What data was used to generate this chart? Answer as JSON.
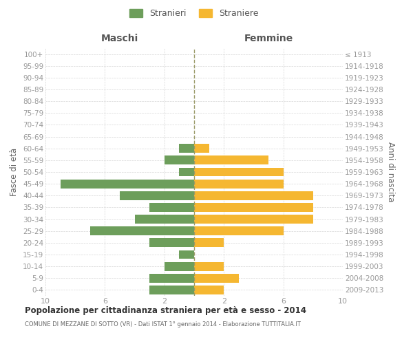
{
  "age_groups": [
    "0-4",
    "5-9",
    "10-14",
    "15-19",
    "20-24",
    "25-29",
    "30-34",
    "35-39",
    "40-44",
    "45-49",
    "50-54",
    "55-59",
    "60-64",
    "65-69",
    "70-74",
    "75-79",
    "80-84",
    "85-89",
    "90-94",
    "95-99",
    "100+"
  ],
  "birth_years": [
    "2009-2013",
    "2004-2008",
    "1999-2003",
    "1994-1998",
    "1989-1993",
    "1984-1988",
    "1979-1983",
    "1974-1978",
    "1969-1973",
    "1964-1968",
    "1959-1963",
    "1954-1958",
    "1949-1953",
    "1944-1948",
    "1939-1943",
    "1934-1938",
    "1929-1933",
    "1924-1928",
    "1919-1923",
    "1914-1918",
    "≤ 1913"
  ],
  "maschi": [
    3,
    3,
    2,
    1,
    3,
    7,
    4,
    3,
    5,
    9,
    1,
    2,
    1,
    0,
    0,
    0,
    0,
    0,
    0,
    0,
    0
  ],
  "femmine": [
    2,
    3,
    2,
    0,
    2,
    6,
    8,
    8,
    8,
    6,
    6,
    5,
    1,
    0,
    0,
    0,
    0,
    0,
    0,
    0,
    0
  ],
  "color_maschi": "#6d9e5b",
  "color_femmine": "#f5b731",
  "xlim": 10,
  "title": "Popolazione per cittadinanza straniera per età e sesso - 2014",
  "subtitle": "COMUNE DI MEZZANE DI SOTTO (VR) - Dati ISTAT 1° gennaio 2014 - Elaborazione TUTTITALIA.IT",
  "ylabel_left": "Fasce di età",
  "ylabel_right": "Anni di nascita",
  "xlabel_maschi": "Maschi",
  "xlabel_femmine": "Femmine",
  "legend_stranieri": "Stranieri",
  "legend_straniere": "Straniere",
  "background_color": "#ffffff",
  "grid_color": "#cccccc",
  "center_line_color": "#999966",
  "tick_label_color": "#999999",
  "bar_height": 0.75
}
